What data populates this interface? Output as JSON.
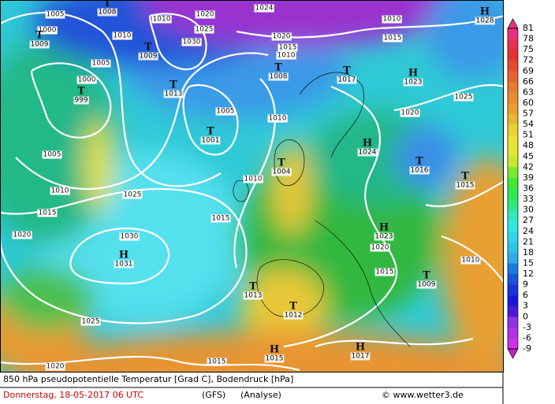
{
  "map": {
    "colorbar": {
      "ticks": [
        81,
        78,
        75,
        72,
        69,
        66,
        63,
        60,
        57,
        54,
        51,
        48,
        45,
        42,
        39,
        36,
        33,
        30,
        27,
        24,
        21,
        18,
        15,
        12,
        9,
        6,
        3,
        0,
        -3,
        -6,
        -9
      ]
    },
    "pressure_centers": [
      {
        "symbol": "T",
        "value": 1009
      },
      {
        "symbol": "T",
        "value": 1008
      },
      {
        "symbol": "T",
        "value": 1009
      },
      {
        "symbol": "T",
        "value": 999
      },
      {
        "symbol": "T",
        "value": 1013
      },
      {
        "symbol": "T",
        "value": 1001
      },
      {
        "symbol": "T",
        "value": 1008
      },
      {
        "symbol": "T",
        "value": 1017
      },
      {
        "symbol": "H",
        "value": 1023
      },
      {
        "symbol": "H",
        "value": 1028
      },
      {
        "symbol": "H",
        "value": 1024
      },
      {
        "symbol": "T",
        "value": 1016
      },
      {
        "symbol": "T",
        "value": 1015
      },
      {
        "symbol": "T",
        "value": 1004
      },
      {
        "symbol": "H",
        "value": 1023
      },
      {
        "symbol": "H",
        "value": 1031
      },
      {
        "symbol": "T",
        "value": 1013
      },
      {
        "symbol": "T",
        "value": 1009
      },
      {
        "symbol": "T",
        "value": 1012
      },
      {
        "symbol": "H",
        "value": 1015
      },
      {
        "symbol": "H",
        "value": 1017
      }
    ],
    "isobar_labels": [
      1005,
      1010,
      1000,
      1010,
      1020,
      1025,
      1024,
      1020,
      1015,
      1010,
      1010,
      1015,
      1005,
      1000,
      1005,
      1010,
      1025,
      1020,
      1005,
      1010,
      1010,
      1015,
      1025,
      1020,
      1015,
      1030,
      1020,
      1015,
      1010,
      1025,
      1020,
      1015,
      1030
    ]
  },
  "footer": {
    "description": "850 hPa pseudopotentielle Temperatur [Grad C], Bodendruck [hPa]",
    "date": "Donnerstag, 18-05-2017  06 UTC",
    "model": "(GFS)",
    "run": "(Analyse)",
    "source": "© www.wetter3.de"
  }
}
